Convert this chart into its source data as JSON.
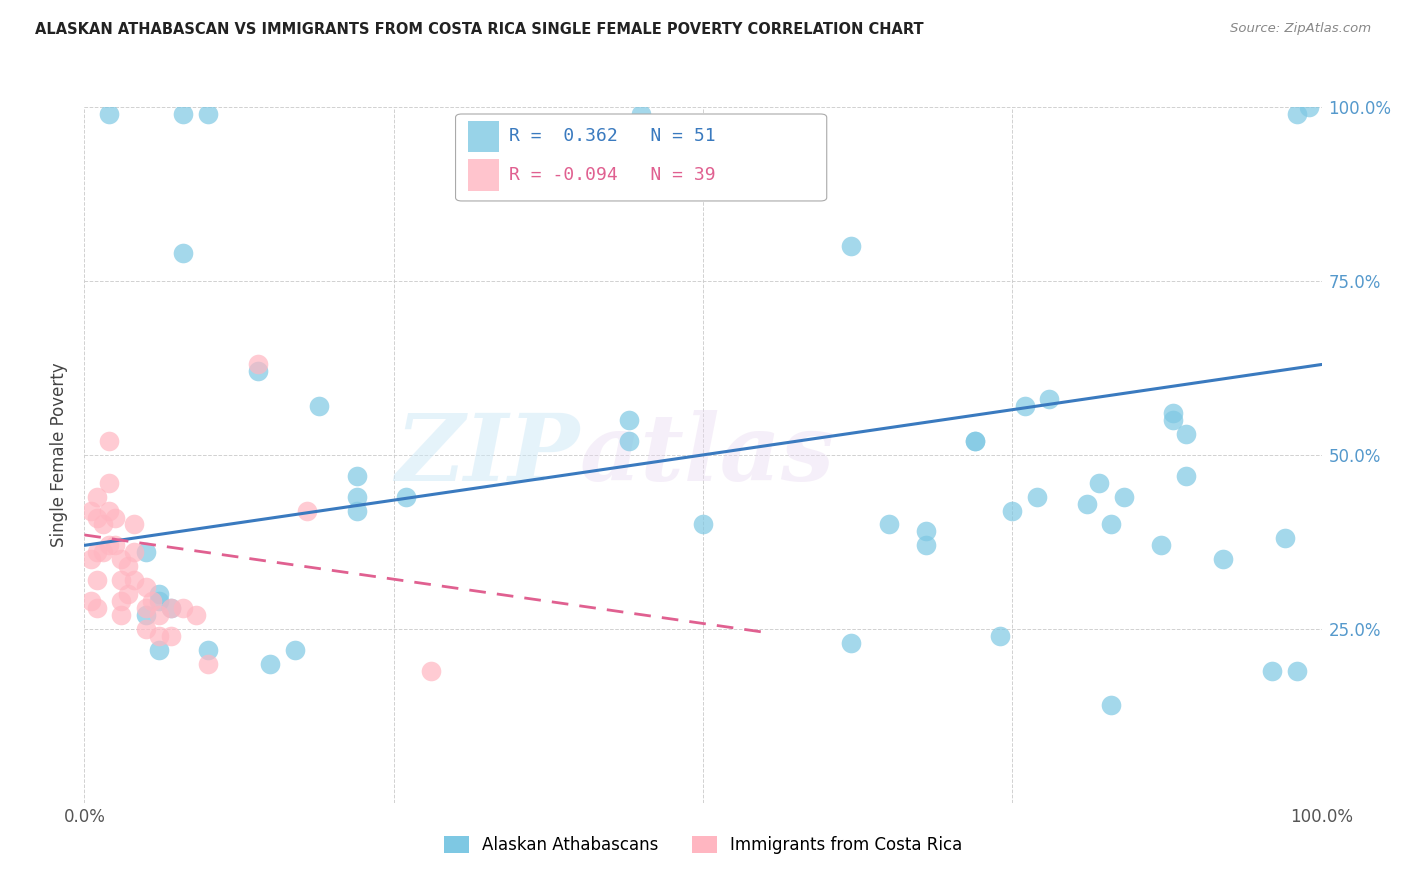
{
  "title": "ALASKAN ATHABASCAN VS IMMIGRANTS FROM COSTA RICA SINGLE FEMALE POVERTY CORRELATION CHART",
  "source": "Source: ZipAtlas.com",
  "ylabel": "Single Female Poverty",
  "xlim": [
    0,
    1
  ],
  "ylim": [
    0,
    1
  ],
  "legend_label1": "Alaskan Athabascans",
  "legend_label2": "Immigrants from Costa Rica",
  "r1": "0.362",
  "n1": "51",
  "r2": "-0.094",
  "n2": "39",
  "blue_color": "#7ec8e3",
  "pink_color": "#ffb6c1",
  "blue_line_color": "#3a7abf",
  "pink_line_color": "#e06090",
  "watermark_zip": "ZIP",
  "watermark_atlas": "atlas",
  "blue_scatter_x": [
    0.02,
    0.08,
    0.08,
    0.05,
    0.06,
    0.06,
    0.07,
    0.05,
    0.06,
    0.1,
    0.1,
    0.14,
    0.15,
    0.17,
    0.19,
    0.22,
    0.22,
    0.22,
    0.26,
    0.44,
    0.44,
    0.45,
    0.5,
    0.62,
    0.62,
    0.65,
    0.68,
    0.68,
    0.72,
    0.72,
    0.74,
    0.75,
    0.76,
    0.77,
    0.78,
    0.81,
    0.82,
    0.83,
    0.83,
    0.84,
    0.87,
    0.88,
    0.88,
    0.89,
    0.89,
    0.92,
    0.96,
    0.97,
    0.98,
    0.98,
    0.99
  ],
  "blue_scatter_y": [
    0.99,
    0.99,
    0.79,
    0.36,
    0.3,
    0.29,
    0.28,
    0.27,
    0.22,
    0.99,
    0.22,
    0.62,
    0.2,
    0.22,
    0.57,
    0.47,
    0.44,
    0.42,
    0.44,
    0.55,
    0.52,
    0.99,
    0.4,
    0.23,
    0.8,
    0.4,
    0.39,
    0.37,
    0.52,
    0.52,
    0.24,
    0.42,
    0.57,
    0.44,
    0.58,
    0.43,
    0.46,
    0.14,
    0.4,
    0.44,
    0.37,
    0.56,
    0.55,
    0.53,
    0.47,
    0.35,
    0.19,
    0.38,
    0.19,
    0.99,
    1.0
  ],
  "pink_scatter_x": [
    0.005,
    0.005,
    0.005,
    0.01,
    0.01,
    0.01,
    0.01,
    0.01,
    0.015,
    0.015,
    0.02,
    0.02,
    0.02,
    0.02,
    0.025,
    0.025,
    0.03,
    0.03,
    0.03,
    0.03,
    0.035,
    0.035,
    0.04,
    0.04,
    0.04,
    0.05,
    0.05,
    0.05,
    0.055,
    0.06,
    0.06,
    0.07,
    0.07,
    0.08,
    0.09,
    0.1,
    0.14,
    0.18,
    0.28
  ],
  "pink_scatter_y": [
    0.42,
    0.35,
    0.29,
    0.44,
    0.41,
    0.36,
    0.32,
    0.28,
    0.4,
    0.36,
    0.52,
    0.46,
    0.42,
    0.37,
    0.41,
    0.37,
    0.35,
    0.32,
    0.29,
    0.27,
    0.34,
    0.3,
    0.4,
    0.36,
    0.32,
    0.31,
    0.28,
    0.25,
    0.29,
    0.27,
    0.24,
    0.28,
    0.24,
    0.28,
    0.27,
    0.2,
    0.63,
    0.42,
    0.19
  ],
  "blue_line_x0": 0.0,
  "blue_line_x1": 1.0,
  "blue_line_y0": 0.37,
  "blue_line_y1": 0.63,
  "pink_line_x0": 0.0,
  "pink_line_x1": 0.55,
  "pink_line_y0": 0.385,
  "pink_line_y1": 0.245
}
